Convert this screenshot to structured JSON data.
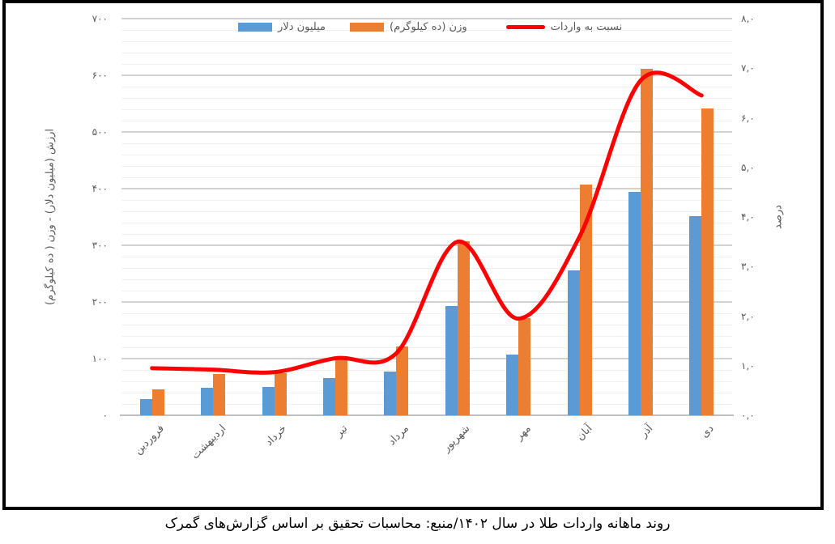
{
  "caption": "روند ماهانه واردات طلا در سال ۱۴۰۲/منبع: محاسبات تحقیق بر اساس گزارش‌های گمرک",
  "left_axis": {
    "title": "ارزش (میلیون دلار) - وزن ( ده کیلوگرم)",
    "labels": [
      "۷۰۰",
      "۶۰۰",
      "۵۰۰",
      "۴۰۰",
      "۳۰۰",
      "۲۰۰",
      "۱۰۰",
      "۰"
    ]
  },
  "right_axis": {
    "title": "درصد",
    "labels": [
      "۸,۰",
      "۷,۰",
      "۶,۰",
      "۵,۰",
      "۴,۰",
      "۳,۰",
      "۲,۰",
      "۱,۰",
      "۰,۰"
    ]
  },
  "colors": {
    "bar_blue": "#5B9BD5",
    "bar_orange": "#ED7D31",
    "line_red": "#FE0000",
    "grid_major": "#d2d2d2",
    "grid_minor": "#f1f1f1",
    "axis_text": "#595959"
  },
  "chart_data": {
    "type": "combo",
    "categories": [
      "فروردین",
      "اردیبهشت",
      "خرداد",
      "تیر",
      "مرداد",
      "شهریور",
      "مهر",
      "آبان",
      "آذر",
      "دی"
    ],
    "series": [
      {
        "name": "میلیون دلار",
        "type": "bar",
        "color": "#5B9BD5",
        "axis": "left",
        "values": [
          29,
          48,
          50,
          66,
          77,
          193,
          107,
          256,
          394,
          351
        ]
      },
      {
        "name": "وزن (ده کیلوگرم)",
        "type": "bar",
        "color": "#ED7D31",
        "axis": "left",
        "values": [
          46,
          73,
          75,
          103,
          121,
          307,
          171,
          407,
          611,
          541
        ]
      },
      {
        "name": "نسبت به واردات",
        "type": "line",
        "color": "#FE0000",
        "axis": "right",
        "values": [
          0.95,
          0.92,
          0.87,
          1.15,
          1.25,
          3.5,
          1.95,
          3.6,
          6.75,
          6.45
        ]
      }
    ],
    "left_axis_range": {
      "min": 0,
      "max": 700,
      "major": 100,
      "minor": 20
    },
    "right_axis_range": {
      "min": 0,
      "max": 8,
      "major": 1
    },
    "grid": "on",
    "legend_position": "top"
  }
}
